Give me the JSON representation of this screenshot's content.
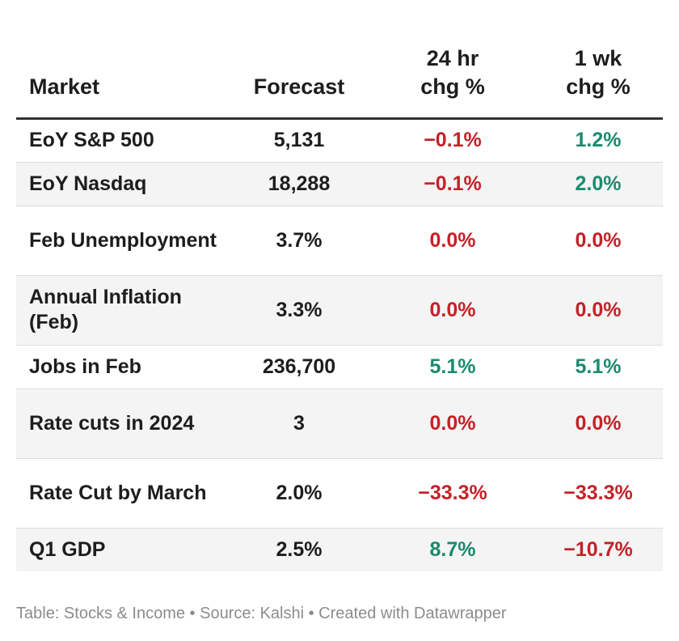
{
  "table": {
    "headers": [
      "Market",
      "Forecast",
      "24 hr\nchg %",
      "1 wk\nchg %"
    ],
    "rows": [
      {
        "market": "EoY S&P 500",
        "forecast": "5,131",
        "chg24": "−0.1%",
        "chg24_sign": "neg",
        "chg1w": "1.2%",
        "chg1w_sign": "pos"
      },
      {
        "market": "EoY Nasdaq",
        "forecast": "18,288",
        "chg24": "−0.1%",
        "chg24_sign": "neg",
        "chg1w": "2.0%",
        "chg1w_sign": "pos"
      },
      {
        "market": "Feb Unemployment",
        "forecast": "3.7%",
        "chg24": "0.0%",
        "chg24_sign": "neg",
        "chg1w": "0.0%",
        "chg1w_sign": "neg"
      },
      {
        "market": "Annual Inflation (Feb)",
        "forecast": "3.3%",
        "chg24": "0.0%",
        "chg24_sign": "neg",
        "chg1w": "0.0%",
        "chg1w_sign": "neg"
      },
      {
        "market": "Jobs in Feb",
        "forecast": "236,700",
        "chg24": "5.1%",
        "chg24_sign": "pos",
        "chg1w": "5.1%",
        "chg1w_sign": "pos"
      },
      {
        "market": "Rate cuts in 2024",
        "forecast": "3",
        "chg24": "0.0%",
        "chg24_sign": "neg",
        "chg1w": "0.0%",
        "chg1w_sign": "neg"
      },
      {
        "market": "Rate Cut by March",
        "forecast": "2.0%",
        "chg24": "−33.3%",
        "chg24_sign": "neg",
        "chg1w": "−33.3%",
        "chg1w_sign": "neg"
      },
      {
        "market": "Q1 GDP",
        "forecast": "2.5%",
        "chg24": "8.7%",
        "chg24_sign": "pos",
        "chg1w": "−10.7%",
        "chg1w_sign": "neg"
      }
    ]
  },
  "colors": {
    "negative": "#c42127",
    "positive": "#1a8a6e",
    "row_shade": "#f4f4f4"
  },
  "footer": "Table: Stocks & Income • Source: Kalshi • Created with Datawrapper"
}
